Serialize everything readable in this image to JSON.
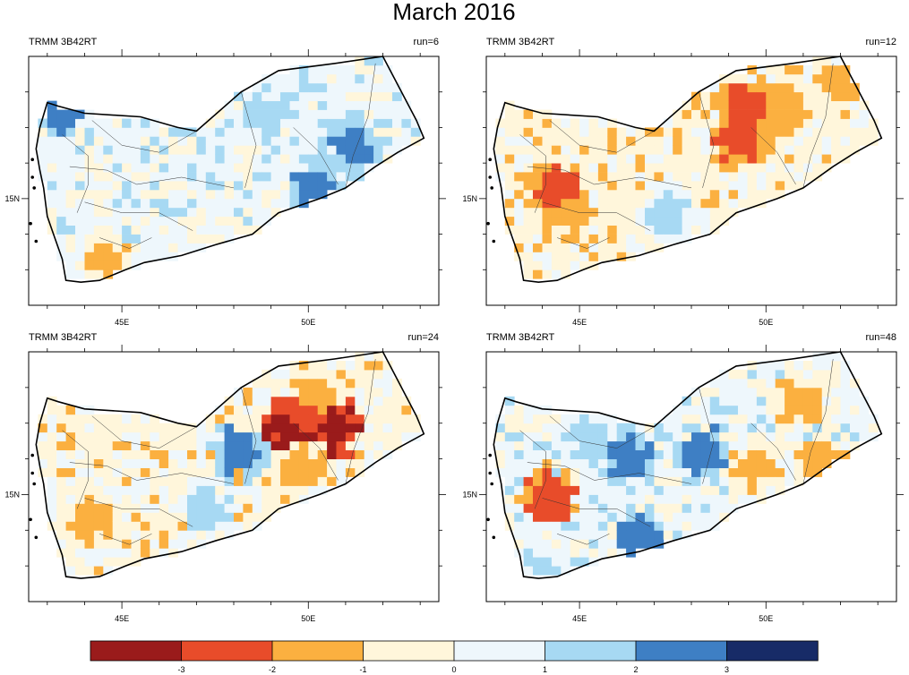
{
  "title": "March 2016",
  "chart_data": [
    {
      "type": "heatmap",
      "left_label": "TRMM 3B42RT",
      "right_label": "run=6",
      "x_ticks": [
        "45E",
        "50E"
      ],
      "y_ticks": [
        "15N"
      ],
      "xlim": [
        42.5,
        53.5
      ],
      "ylim": [
        12.0,
        19.0
      ],
      "dominant_category": "0 to 1",
      "hotspots": [
        {
          "lon": 43.2,
          "lat": 17.5,
          "category": "2 to 3"
        },
        {
          "lon": 48.9,
          "lat": 17.4,
          "category": "1 to 2"
        },
        {
          "lon": 51.2,
          "lat": 16.5,
          "category": "2 to 3"
        },
        {
          "lon": 50.2,
          "lat": 15.3,
          "category": "2 to 3"
        },
        {
          "lon": 44.6,
          "lat": 13.3,
          "category": "-2 to -1"
        },
        {
          "lon": 50.5,
          "lat": 16.0,
          "category": "1 to 2"
        }
      ]
    },
    {
      "type": "heatmap",
      "left_label": "TRMM 3B42RT",
      "right_label": "run=12",
      "x_ticks": [
        "45E",
        "50E"
      ],
      "y_ticks": [
        "15N"
      ],
      "xlim": [
        42.5,
        53.5
      ],
      "ylim": [
        12.0,
        19.0
      ],
      "dominant_category": "-1 to 0",
      "hotspots": [
        {
          "lon": 44.4,
          "lat": 15.2,
          "category": "-3 to -2"
        },
        {
          "lon": 44.6,
          "lat": 14.6,
          "category": "-2 to -1"
        },
        {
          "lon": 49.5,
          "lat": 17.7,
          "category": "-3 to -2"
        },
        {
          "lon": 50.5,
          "lat": 17.5,
          "category": "-2 to -1"
        },
        {
          "lon": 49.3,
          "lat": 16.7,
          "category": "-3 to -2"
        },
        {
          "lon": 52.0,
          "lat": 18.3,
          "category": "-2 to -1"
        },
        {
          "lon": 47.3,
          "lat": 14.6,
          "category": "1 to 2"
        }
      ]
    },
    {
      "type": "heatmap",
      "left_label": "TRMM 3B42RT",
      "right_label": "run=24",
      "x_ticks": [
        "45E",
        "50E"
      ],
      "y_ticks": [
        "15N"
      ],
      "xlim": [
        42.5,
        53.5
      ],
      "ylim": [
        12.0,
        19.0
      ],
      "dominant_category": "-1 to 0",
      "hotspots": [
        {
          "lon": 49.8,
          "lat": 17.2,
          "category": "-3 to -2"
        },
        {
          "lon": 50.7,
          "lat": 16.9,
          "category": "-4 to -3"
        },
        {
          "lon": 49.4,
          "lat": 16.9,
          "category": "-4 to -3"
        },
        {
          "lon": 50.2,
          "lat": 17.8,
          "category": "-2 to -1"
        },
        {
          "lon": 49.8,
          "lat": 15.9,
          "category": "-2 to -1"
        },
        {
          "lon": 47.3,
          "lat": 14.6,
          "category": "1 to 2"
        },
        {
          "lon": 44.2,
          "lat": 14.3,
          "category": "-2 to -1"
        },
        {
          "lon": 48.2,
          "lat": 16.2,
          "category": "2 to 3"
        }
      ]
    },
    {
      "type": "heatmap",
      "left_label": "TRMM 3B42RT",
      "right_label": "run=48",
      "x_ticks": [
        "45E",
        "50E"
      ],
      "y_ticks": [
        "15N"
      ],
      "xlim": [
        42.5,
        53.5
      ],
      "ylim": [
        12.0,
        19.0
      ],
      "dominant_category": "0 to 1",
      "hotspots": [
        {
          "lon": 45.3,
          "lat": 16.4,
          "category": "1 to 2"
        },
        {
          "lon": 46.3,
          "lat": 16.0,
          "category": "2 to 3"
        },
        {
          "lon": 48.3,
          "lat": 16.2,
          "category": "2 to 3"
        },
        {
          "lon": 44.2,
          "lat": 15.0,
          "category": "-3 to -2"
        },
        {
          "lon": 49.7,
          "lat": 15.8,
          "category": "-2 to -1"
        },
        {
          "lon": 51.5,
          "lat": 15.9,
          "category": "-2 to -1"
        },
        {
          "lon": 50.9,
          "lat": 17.6,
          "category": "-2 to -1"
        },
        {
          "lon": 46.7,
          "lat": 13.7,
          "category": "2 to 3"
        },
        {
          "lon": 44.0,
          "lat": 12.6,
          "category": "1 to 2"
        }
      ]
    }
  ],
  "colorbar": {
    "tick_labels": [
      "-3",
      "-2",
      "-1",
      "0",
      "1",
      "2",
      "3"
    ],
    "colors": [
      "#9a1b1b",
      "#e84c2a",
      "#fbb040",
      "#fff6db",
      "#eef7fc",
      "#a7d9f3",
      "#3e7fc4",
      "#172b67"
    ]
  },
  "category_colors": {
    "-4 to -3": "#9a1b1b",
    "-3 to -2": "#e84c2a",
    "-2 to -1": "#fbb040",
    "-1 to 0": "#fff6db",
    "0 to 1": "#eef7fc",
    "1 to 2": "#a7d9f3",
    "2 to 3": "#3e7fc4",
    "3 to 4": "#172b67"
  }
}
